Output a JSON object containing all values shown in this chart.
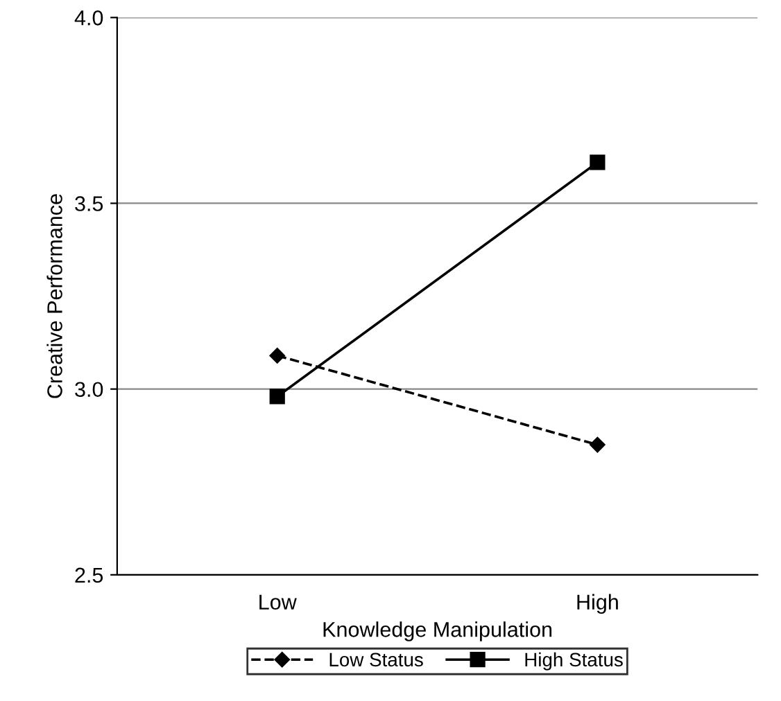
{
  "chart_data": {
    "type": "line",
    "xlabel": "Knowledge Manipulation",
    "ylabel": "Creative Performance",
    "categories": [
      "Low",
      "High"
    ],
    "series": [
      {
        "name": "Low Status",
        "color": "#000000",
        "values": [
          3.09,
          2.85
        ],
        "marker": "diamond",
        "line_style": "dashed"
      },
      {
        "name": "High Status",
        "color": "#000000",
        "values": [
          2.98,
          3.61
        ],
        "marker": "square",
        "line_style": "solid"
      }
    ],
    "ylim": [
      2.5,
      4.0
    ],
    "yticks": [
      {
        "value": 2.5,
        "label": "2.5"
      },
      {
        "value": 3.0,
        "label": "3.0"
      },
      {
        "value": 3.5,
        "label": "3.5"
      },
      {
        "value": 4.0,
        "label": "4.0"
      }
    ],
    "grid": "y",
    "legend": "bottom"
  }
}
